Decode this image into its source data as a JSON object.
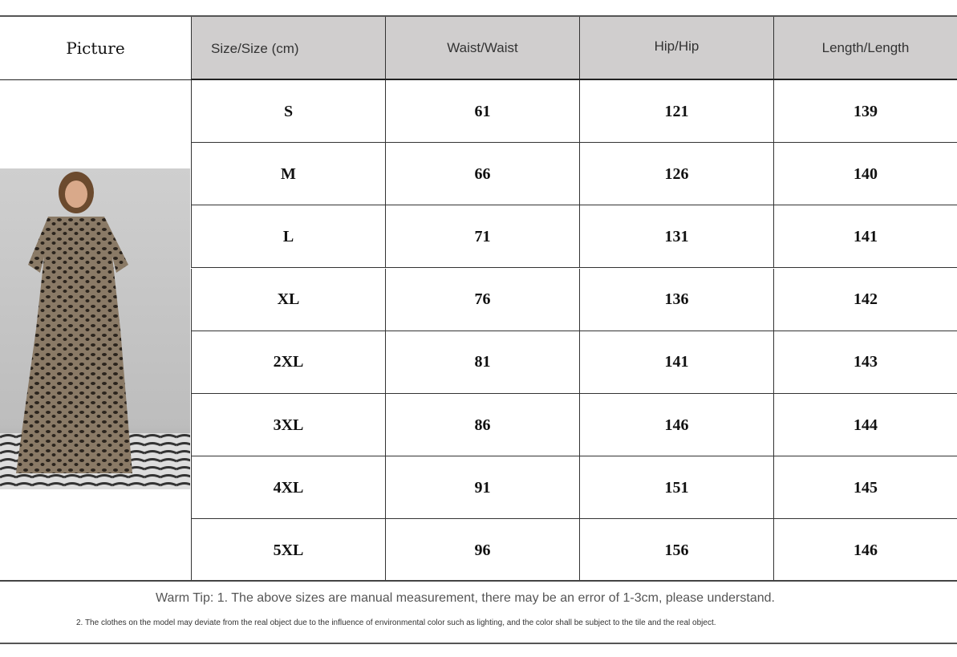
{
  "table": {
    "picture_header": "Picture",
    "headers": [
      "Size/Size (cm)",
      "Waist/Waist",
      "Hip/Hip",
      "Length/Length"
    ],
    "rows": [
      [
        "S",
        "61",
        "121",
        "139"
      ],
      [
        "M",
        "66",
        "126",
        "140"
      ],
      [
        "L",
        "71",
        "131",
        "141"
      ],
      [
        "XL",
        "76",
        "136",
        "142"
      ],
      [
        "2XL",
        "81",
        "141",
        "143"
      ],
      [
        "3XL",
        "86",
        "146",
        "144"
      ],
      [
        "4XL",
        "91",
        "151",
        "145"
      ],
      [
        "5XL",
        "96",
        "156",
        "146"
      ]
    ]
  },
  "notes": {
    "tip1": "Warm Tip: 1. The above sizes are manual measurement, there may be an error of 1-3cm, please understand.",
    "tip2": "2. The clothes on the model may deviate from the real object due to the influence of environmental color such as lighting, and the color shall be subject to the tile and the real object."
  },
  "colors": {
    "header_bg": "#d0cece",
    "garment": "leopard print"
  }
}
